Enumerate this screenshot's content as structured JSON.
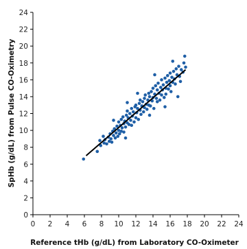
{
  "chart_data": {
    "type": "scatter",
    "xlabel": "Reference tHb (g/dL) from Laboratory CO-Oximeter",
    "ylabel": "SpHb (g/dL) from Pulse CO-Oximetry",
    "xlim": [
      0,
      24
    ],
    "ylim": [
      0,
      24
    ],
    "x_ticks": [
      "0",
      "2",
      "4",
      "6",
      "8",
      "10",
      "12",
      "14",
      "16",
      "18",
      "20",
      "22",
      "24"
    ],
    "y_ticks": [
      "0",
      "2",
      "4",
      "6",
      "8",
      "10",
      "12",
      "14",
      "16",
      "18",
      "20",
      "22",
      "24"
    ],
    "grid": false,
    "point_color": "#1f5fa6",
    "line_color": "#000000",
    "regression_line": {
      "x": [
        6.2,
        17.8
      ],
      "y": [
        7.0,
        17.2
      ]
    },
    "series": [
      {
        "points": [
          [
            5.9,
            6.6
          ],
          [
            7.5,
            7.5
          ],
          [
            7.8,
            8.8
          ],
          [
            7.9,
            8.2
          ],
          [
            8.2,
            9.3
          ],
          [
            8.3,
            8.5
          ],
          [
            8.4,
            8.9
          ],
          [
            8.6,
            8.4
          ],
          [
            8.8,
            9.2
          ],
          [
            8.9,
            8.7
          ],
          [
            9.0,
            9.6
          ],
          [
            9.1,
            9.0
          ],
          [
            9.2,
            8.6
          ],
          [
            9.3,
            9.9
          ],
          [
            9.4,
            9.4
          ],
          [
            9.5,
            10.2
          ],
          [
            9.6,
            9.1
          ],
          [
            9.7,
            9.7
          ],
          [
            9.8,
            10.5
          ],
          [
            9.9,
            9.3
          ],
          [
            10.0,
            10.0
          ],
          [
            10.0,
            11.0
          ],
          [
            10.1,
            9.6
          ],
          [
            10.2,
            10.6
          ],
          [
            10.3,
            11.3
          ],
          [
            10.3,
            9.9
          ],
          [
            10.4,
            10.3
          ],
          [
            10.5,
            11.6
          ],
          [
            10.6,
            10.8
          ],
          [
            10.6,
            9.8
          ],
          [
            10.7,
            11.1
          ],
          [
            10.8,
            10.4
          ],
          [
            10.9,
            11.8
          ],
          [
            11.0,
            10.9
          ],
          [
            11.0,
            12.3
          ],
          [
            11.1,
            11.5
          ],
          [
            11.2,
            10.7
          ],
          [
            11.3,
            12.0
          ],
          [
            11.4,
            11.2
          ],
          [
            11.5,
            12.6
          ],
          [
            11.5,
            10.6
          ],
          [
            11.6,
            11.7
          ],
          [
            11.7,
            12.2
          ],
          [
            11.8,
            11.0
          ],
          [
            11.9,
            12.8
          ],
          [
            12.0,
            11.5
          ],
          [
            12.0,
            13.0
          ],
          [
            12.1,
            12.1
          ],
          [
            12.2,
            12.6
          ],
          [
            12.3,
            11.3
          ],
          [
            12.4,
            13.2
          ],
          [
            12.5,
            12.4
          ],
          [
            12.5,
            13.6
          ],
          [
            12.6,
            11.9
          ],
          [
            12.7,
            12.9
          ],
          [
            12.8,
            13.4
          ],
          [
            12.9,
            12.2
          ],
          [
            13.0,
            13.8
          ],
          [
            13.0,
            12.7
          ],
          [
            13.1,
            14.2
          ],
          [
            13.2,
            13.1
          ],
          [
            13.3,
            12.5
          ],
          [
            13.4,
            13.6
          ],
          [
            13.5,
            14.4
          ],
          [
            13.5,
            13.0
          ],
          [
            13.6,
            14.0
          ],
          [
            13.7,
            12.9
          ],
          [
            13.8,
            14.6
          ],
          [
            13.9,
            13.5
          ],
          [
            14.0,
            15.0
          ],
          [
            14.0,
            13.9
          ],
          [
            14.1,
            12.6
          ],
          [
            14.2,
            14.3
          ],
          [
            14.3,
            15.3
          ],
          [
            14.4,
            13.8
          ],
          [
            14.5,
            14.8
          ],
          [
            14.5,
            13.4
          ],
          [
            14.6,
            15.6
          ],
          [
            14.7,
            14.4
          ],
          [
            14.8,
            13.6
          ],
          [
            14.9,
            15.1
          ],
          [
            15.0,
            14.2
          ],
          [
            15.0,
            16.0
          ],
          [
            15.1,
            14.8
          ],
          [
            15.2,
            15.4
          ],
          [
            15.3,
            13.9
          ],
          [
            15.4,
            16.2
          ],
          [
            15.5,
            15.0
          ],
          [
            15.5,
            14.3
          ],
          [
            15.6,
            15.7
          ],
          [
            15.7,
            16.5
          ],
          [
            15.8,
            14.9
          ],
          [
            15.9,
            15.9
          ],
          [
            16.0,
            16.8
          ],
          [
            16.0,
            15.3
          ],
          [
            16.1,
            14.6
          ],
          [
            16.2,
            16.3
          ],
          [
            16.3,
            15.7
          ],
          [
            16.4,
            17.0
          ],
          [
            16.5,
            16.1
          ],
          [
            16.6,
            15.5
          ],
          [
            16.7,
            17.3
          ],
          [
            16.8,
            16.6
          ],
          [
            16.9,
            14.0
          ],
          [
            17.0,
            17.6
          ],
          [
            17.1,
            16.4
          ],
          [
            17.2,
            15.8
          ],
          [
            17.3,
            17.2
          ],
          [
            17.5,
            16.9
          ],
          [
            17.6,
            18.0
          ],
          [
            17.7,
            18.8
          ],
          [
            17.8,
            17.5
          ],
          [
            12.2,
            14.4
          ],
          [
            11.0,
            13.3
          ],
          [
            13.6,
            11.8
          ],
          [
            15.4,
            12.8
          ],
          [
            9.4,
            11.2
          ],
          [
            10.8,
            9.1
          ],
          [
            14.2,
            16.6
          ],
          [
            16.3,
            18.2
          ]
        ]
      }
    ]
  }
}
